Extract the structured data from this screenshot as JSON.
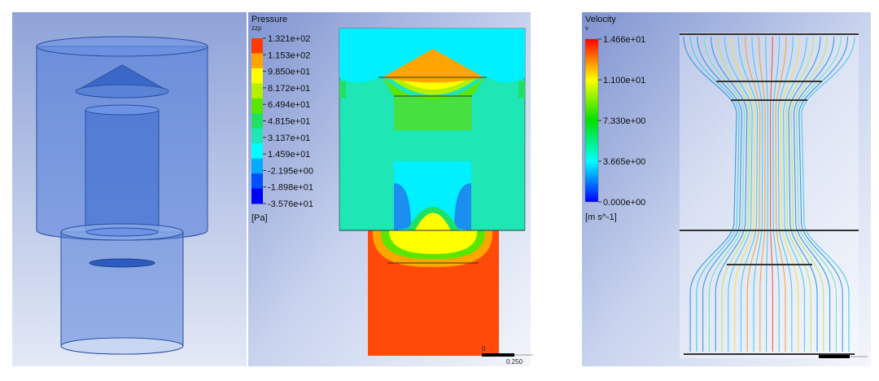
{
  "pressure_legend": {
    "title": "Pressure",
    "variable": "zzp",
    "unit": "[Pa]",
    "ticks": [
      "1.321e+02",
      "1.153e+02",
      "9.850e+01",
      "8.172e+01",
      "6.494e+01",
      "4.815e+01",
      "3.137e+01",
      "1.459e+01",
      "-2.195e+00",
      "-1.898e+01",
      "-3.576e+01"
    ],
    "colors": [
      "#ff3c00",
      "#ffa500",
      "#ffff00",
      "#b4f000",
      "#5ae600",
      "#1ee164",
      "#1ee6b4",
      "#00ffff",
      "#00aaff",
      "#0050ff",
      "#0000ff"
    ]
  },
  "velocity_legend": {
    "title": "Velocity",
    "variable": "v",
    "unit": "[m s^-1]",
    "ticks": [
      "1.466e+01",
      "1.100e+01",
      "7.330e+00",
      "3.665e+00",
      "0.000e+00"
    ]
  },
  "scale_bars": {
    "pressure": {
      "start": "0",
      "end": "0.250"
    },
    "velocity": {
      "start": "",
      "end": ""
    }
  }
}
